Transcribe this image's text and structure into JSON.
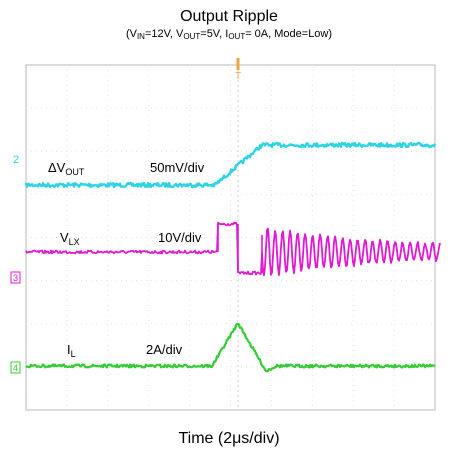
{
  "chart_data": {
    "type": "line",
    "title": "Output Ripple",
    "subtitle": {
      "prefix": "(V",
      "vin_sub": "IN",
      "vin_val": "=12V, V",
      "vout_sub": "OUT",
      "vout_val": "=5V, I",
      "iout_sub": "OUT",
      "iout_val": "= 0A, Mode=Low)"
    },
    "xlabel": "Time (2μs/div)",
    "channels": [
      {
        "marker": "2",
        "name_main": "ΔV",
        "name_sub": "OUT",
        "scale": "50mV/div",
        "color": "#2ed3e3"
      },
      {
        "marker": "3",
        "name_main": "V",
        "name_sub": "LX",
        "scale": "10V/div",
        "color": "#e01ad0"
      },
      {
        "marker": "4",
        "name_main": "I",
        "name_sub": "L",
        "scale": "2A/div",
        "color": "#33cc33"
      }
    ],
    "trigger_marker": "T",
    "grid": "divisions, dotted",
    "background": "#ffffff"
  }
}
